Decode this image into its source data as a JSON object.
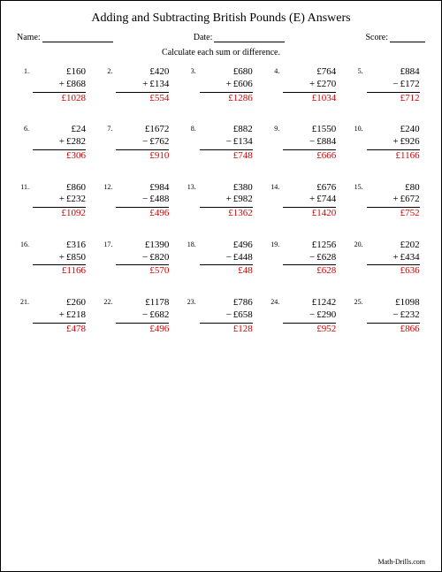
{
  "title": "Adding and Subtracting British Pounds (E) Answers",
  "meta": {
    "name_label": "Name:",
    "date_label": "Date:",
    "score_label": "Score:"
  },
  "instruction": "Calculate each sum or difference.",
  "currency": "£",
  "answer_color": "#d00000",
  "footer": "Math-Drills.com",
  "problems": [
    {
      "n": "1.",
      "a": "160",
      "op": "+",
      "b": "868",
      "ans": "1028"
    },
    {
      "n": "2.",
      "a": "420",
      "op": "+",
      "b": "134",
      "ans": "554"
    },
    {
      "n": "3.",
      "a": "680",
      "op": "+",
      "b": "606",
      "ans": "1286"
    },
    {
      "n": "4.",
      "a": "764",
      "op": "+",
      "b": "270",
      "ans": "1034"
    },
    {
      "n": "5.",
      "a": "884",
      "op": "−",
      "b": "172",
      "ans": "712"
    },
    {
      "n": "6.",
      "a": "24",
      "op": "+",
      "b": "282",
      "ans": "306"
    },
    {
      "n": "7.",
      "a": "1672",
      "op": "−",
      "b": "762",
      "ans": "910"
    },
    {
      "n": "8.",
      "a": "882",
      "op": "−",
      "b": "134",
      "ans": "748"
    },
    {
      "n": "9.",
      "a": "1550",
      "op": "−",
      "b": "884",
      "ans": "666"
    },
    {
      "n": "10.",
      "a": "240",
      "op": "+",
      "b": "926",
      "ans": "1166"
    },
    {
      "n": "11.",
      "a": "860",
      "op": "+",
      "b": "232",
      "ans": "1092"
    },
    {
      "n": "12.",
      "a": "984",
      "op": "−",
      "b": "488",
      "ans": "496"
    },
    {
      "n": "13.",
      "a": "380",
      "op": "+",
      "b": "982",
      "ans": "1362"
    },
    {
      "n": "14.",
      "a": "676",
      "op": "+",
      "b": "744",
      "ans": "1420"
    },
    {
      "n": "15.",
      "a": "80",
      "op": "+",
      "b": "672",
      "ans": "752"
    },
    {
      "n": "16.",
      "a": "316",
      "op": "+",
      "b": "850",
      "ans": "1166"
    },
    {
      "n": "17.",
      "a": "1390",
      "op": "−",
      "b": "820",
      "ans": "570"
    },
    {
      "n": "18.",
      "a": "496",
      "op": "−",
      "b": "448",
      "ans": "48"
    },
    {
      "n": "19.",
      "a": "1256",
      "op": "−",
      "b": "628",
      "ans": "628"
    },
    {
      "n": "20.",
      "a": "202",
      "op": "+",
      "b": "434",
      "ans": "636"
    },
    {
      "n": "21.",
      "a": "260",
      "op": "+",
      "b": "218",
      "ans": "478"
    },
    {
      "n": "22.",
      "a": "1178",
      "op": "−",
      "b": "682",
      "ans": "496"
    },
    {
      "n": "23.",
      "a": "786",
      "op": "−",
      "b": "658",
      "ans": "128"
    },
    {
      "n": "24.",
      "a": "1242",
      "op": "−",
      "b": "290",
      "ans": "952"
    },
    {
      "n": "25.",
      "a": "1098",
      "op": "−",
      "b": "232",
      "ans": "866"
    }
  ]
}
